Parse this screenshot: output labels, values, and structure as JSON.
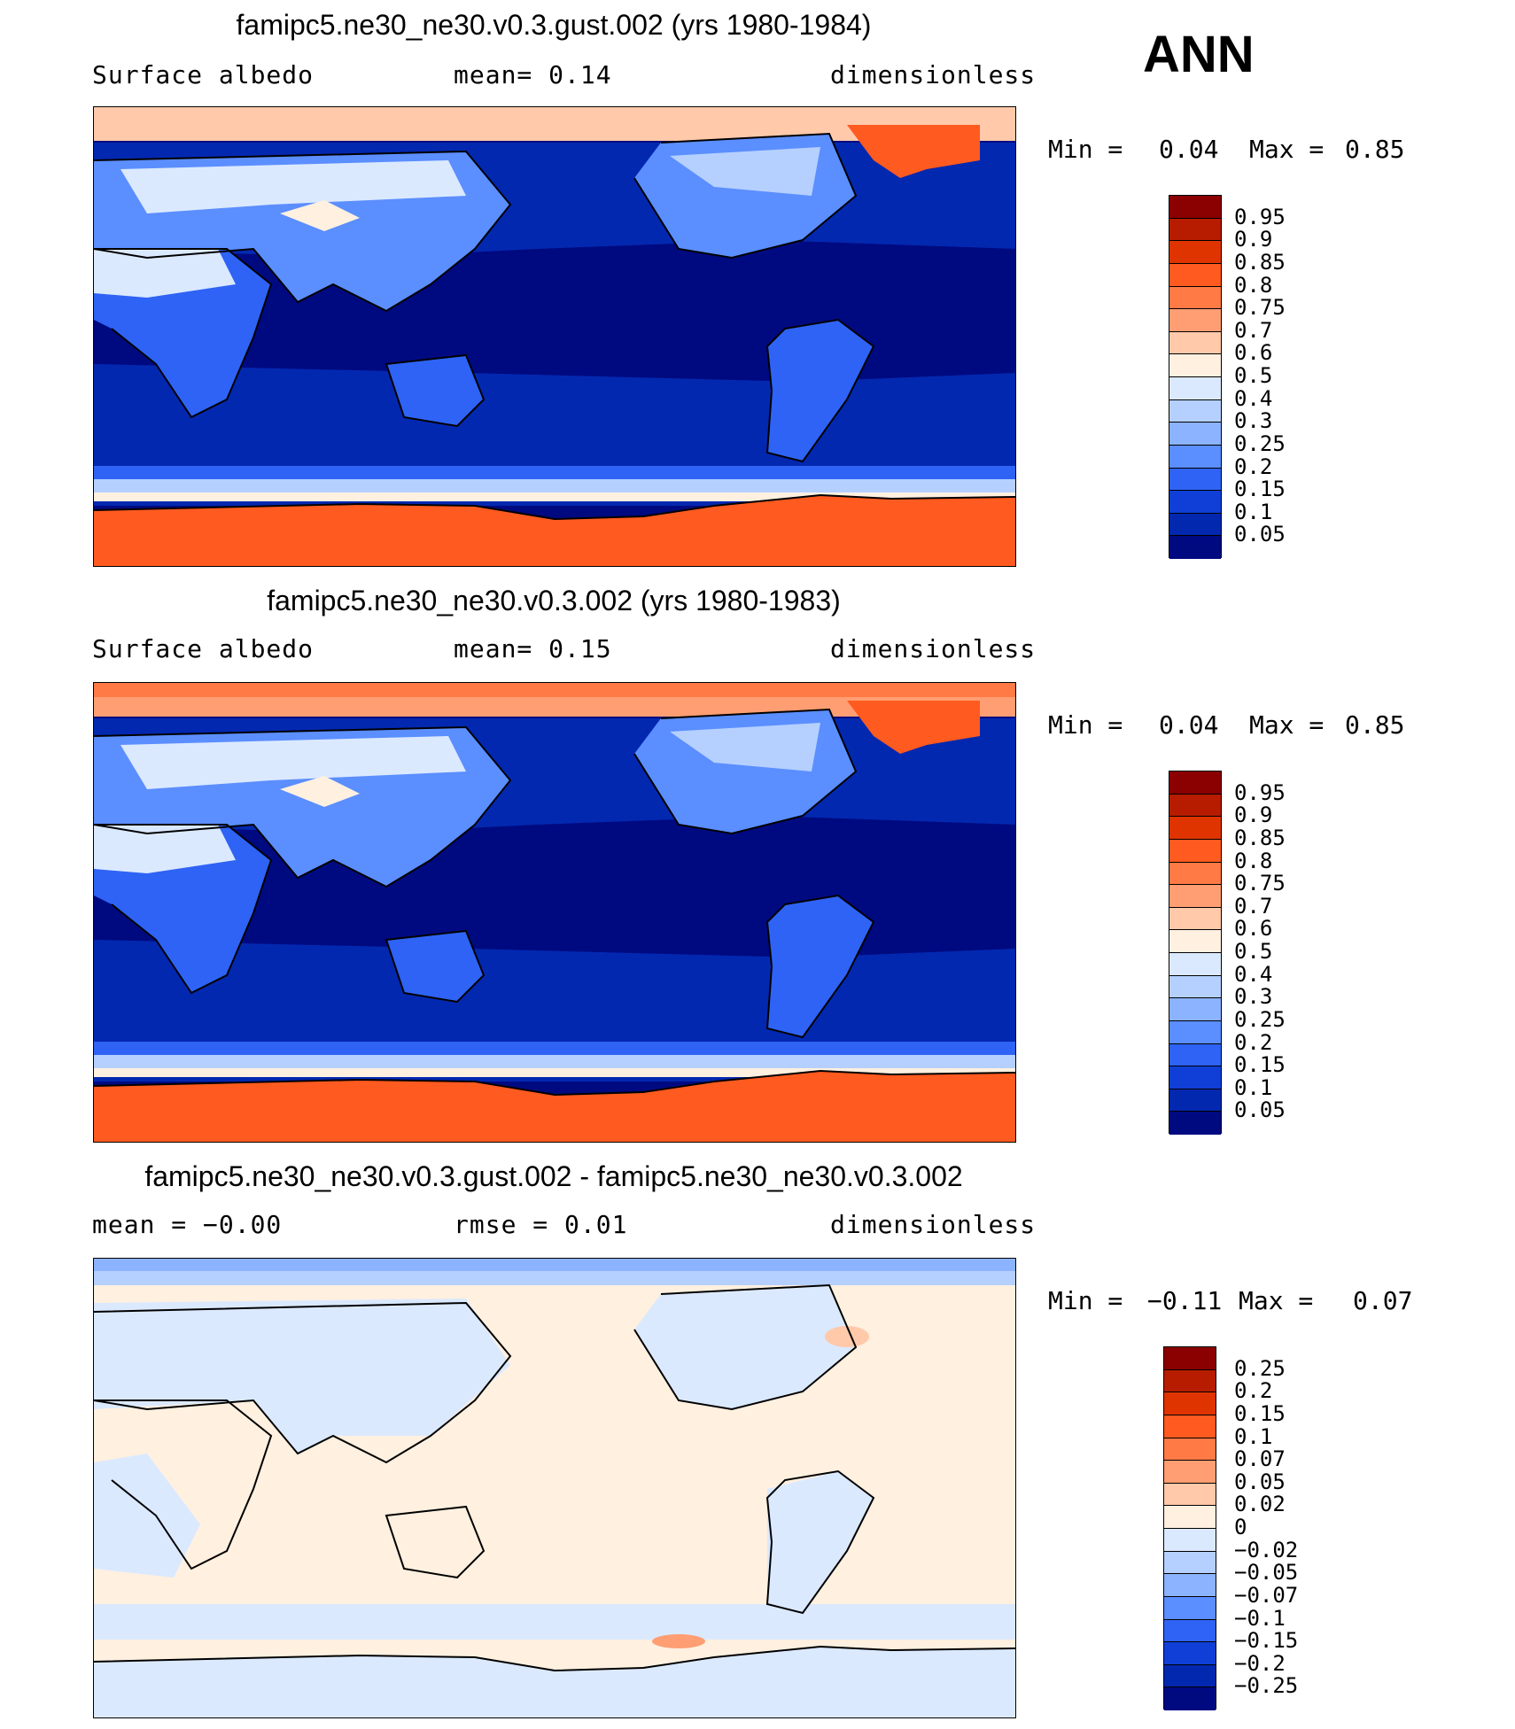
{
  "season": "ANN",
  "panels": [
    {
      "title": "famipc5.ne30_ne30.v0.3.gust.002 (yrs 1980-1984)",
      "left_label": "Surface albedo",
      "center_label": "mean=    0.14",
      "right_label": "dimensionless",
      "stats": {
        "min_label": "Min =",
        "min_value": "0.04",
        "max_label": "Max =",
        "max_value": "0.85"
      },
      "colorbar": "abs"
    },
    {
      "title": "famipc5.ne30_ne30.v0.3.002 (yrs 1980-1983)",
      "left_label": "Surface albedo",
      "center_label": "mean=    0.15",
      "right_label": "dimensionless",
      "stats": {
        "min_label": "Min =",
        "min_value": "0.04",
        "max_label": "Max =",
        "max_value": "0.85"
      },
      "colorbar": "abs"
    },
    {
      "title": "famipc5.ne30_ne30.v0.3.gust.002 - famipc5.ne30_ne30.v0.3.002",
      "left_label": "mean =   −0.00",
      "center_label": "rmse =    0.01",
      "right_label": "dimensionless",
      "stats": {
        "min_label": "Min =",
        "min_value": "−0.11",
        "max_label": "Max =",
        "max_value": "0.07"
      },
      "colorbar": "diff"
    }
  ],
  "colorbars": {
    "abs": {
      "labels": [
        "0.95",
        "0.9",
        "0.85",
        "0.8",
        "0.75",
        "0.7",
        "0.6",
        "0.5",
        "0.4",
        "0.3",
        "0.25",
        "0.2",
        "0.15",
        "0.1",
        "0.05"
      ],
      "colors": [
        "#8b0000",
        "#b71c00",
        "#e03400",
        "#ff5a1f",
        "#ff7a45",
        "#ff9e73",
        "#ffc9aa",
        "#fff0e0",
        "#dbe9ff",
        "#b5d0ff",
        "#8cb3ff",
        "#5b8eff",
        "#2e63f5",
        "#0f3fd6",
        "#0328b0",
        "#000a80"
      ]
    },
    "diff": {
      "labels": [
        "0.25",
        "0.2",
        "0.15",
        "0.1",
        "0.07",
        "0.05",
        "0.02",
        "0",
        "−0.02",
        "−0.05",
        "−0.07",
        "−0.1",
        "−0.15",
        "−0.2",
        "−0.25"
      ],
      "colors": [
        "#8b0000",
        "#b71c00",
        "#e03400",
        "#ff5a1f",
        "#ff7a45",
        "#ff9e73",
        "#ffc9aa",
        "#fff0e0",
        "#dbe9ff",
        "#b5d0ff",
        "#8cb3ff",
        "#5b8eff",
        "#2e63f5",
        "#0f3fd6",
        "#0328b0",
        "#000a80"
      ]
    }
  }
}
